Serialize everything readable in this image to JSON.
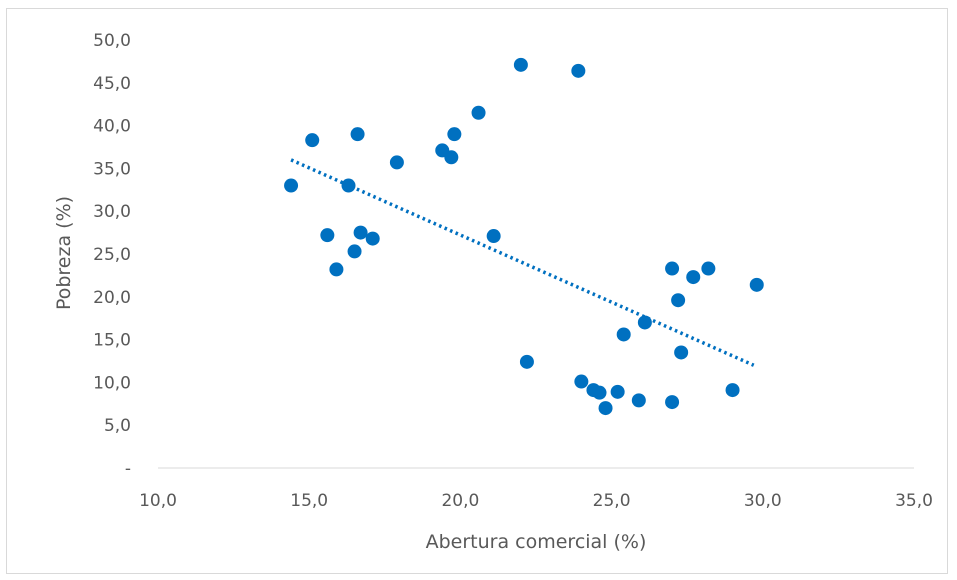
{
  "chart_data": {
    "type": "scatter",
    "title": "",
    "xlabel": "Abertura comercial (%)",
    "ylabel": "Pobreza (%)",
    "xlim": [
      10,
      35
    ],
    "ylim": [
      0,
      50
    ],
    "x_ticks": [
      10,
      15,
      20,
      25,
      30,
      35
    ],
    "y_ticks": [
      0,
      5,
      10,
      15,
      20,
      25,
      30,
      35,
      40,
      45,
      50
    ],
    "x_tick_labels": [
      "10,0",
      "15,0",
      "20,0",
      "25,0",
      "30,0",
      "35,0"
    ],
    "y_tick_labels": [
      "-",
      "5,0",
      "10,0",
      "15,0",
      "20,0",
      "25,0",
      "30,0",
      "35,0",
      "40,0",
      "45,0",
      "50,0"
    ],
    "grid": false,
    "legend": "none",
    "marker_color": "#0070c0",
    "trendline": {
      "type": "linear",
      "style": "dotted",
      "color": "#0070c0",
      "x": [
        14.4,
        29.7
      ],
      "y": [
        36.0,
        12.0
      ]
    },
    "series": [
      {
        "points": [
          {
            "x": 14.4,
            "y": 33.0
          },
          {
            "x": 15.1,
            "y": 38.3
          },
          {
            "x": 15.6,
            "y": 27.2
          },
          {
            "x": 15.9,
            "y": 23.2
          },
          {
            "x": 16.3,
            "y": 33.0
          },
          {
            "x": 16.5,
            "y": 25.3
          },
          {
            "x": 16.6,
            "y": 39.0
          },
          {
            "x": 16.7,
            "y": 27.5
          },
          {
            "x": 17.1,
            "y": 26.8
          },
          {
            "x": 17.9,
            "y": 35.7
          },
          {
            "x": 19.4,
            "y": 37.1
          },
          {
            "x": 19.7,
            "y": 36.3
          },
          {
            "x": 19.8,
            "y": 39.0
          },
          {
            "x": 20.6,
            "y": 41.5
          },
          {
            "x": 21.1,
            "y": 27.1
          },
          {
            "x": 22.0,
            "y": 47.1
          },
          {
            "x": 22.2,
            "y": 12.4
          },
          {
            "x": 23.9,
            "y": 46.4
          },
          {
            "x": 24.0,
            "y": 10.1
          },
          {
            "x": 24.4,
            "y": 9.1
          },
          {
            "x": 24.6,
            "y": 8.8
          },
          {
            "x": 24.8,
            "y": 7.0
          },
          {
            "x": 25.2,
            "y": 8.9
          },
          {
            "x": 25.4,
            "y": 15.6
          },
          {
            "x": 25.9,
            "y": 7.9
          },
          {
            "x": 26.1,
            "y": 17.0
          },
          {
            "x": 27.0,
            "y": 23.3
          },
          {
            "x": 27.0,
            "y": 7.7
          },
          {
            "x": 27.2,
            "y": 19.6
          },
          {
            "x": 27.3,
            "y": 13.5
          },
          {
            "x": 27.7,
            "y": 22.3
          },
          {
            "x": 28.2,
            "y": 23.3
          },
          {
            "x": 29.0,
            "y": 9.1
          },
          {
            "x": 29.8,
            "y": 21.4
          }
        ]
      }
    ]
  }
}
